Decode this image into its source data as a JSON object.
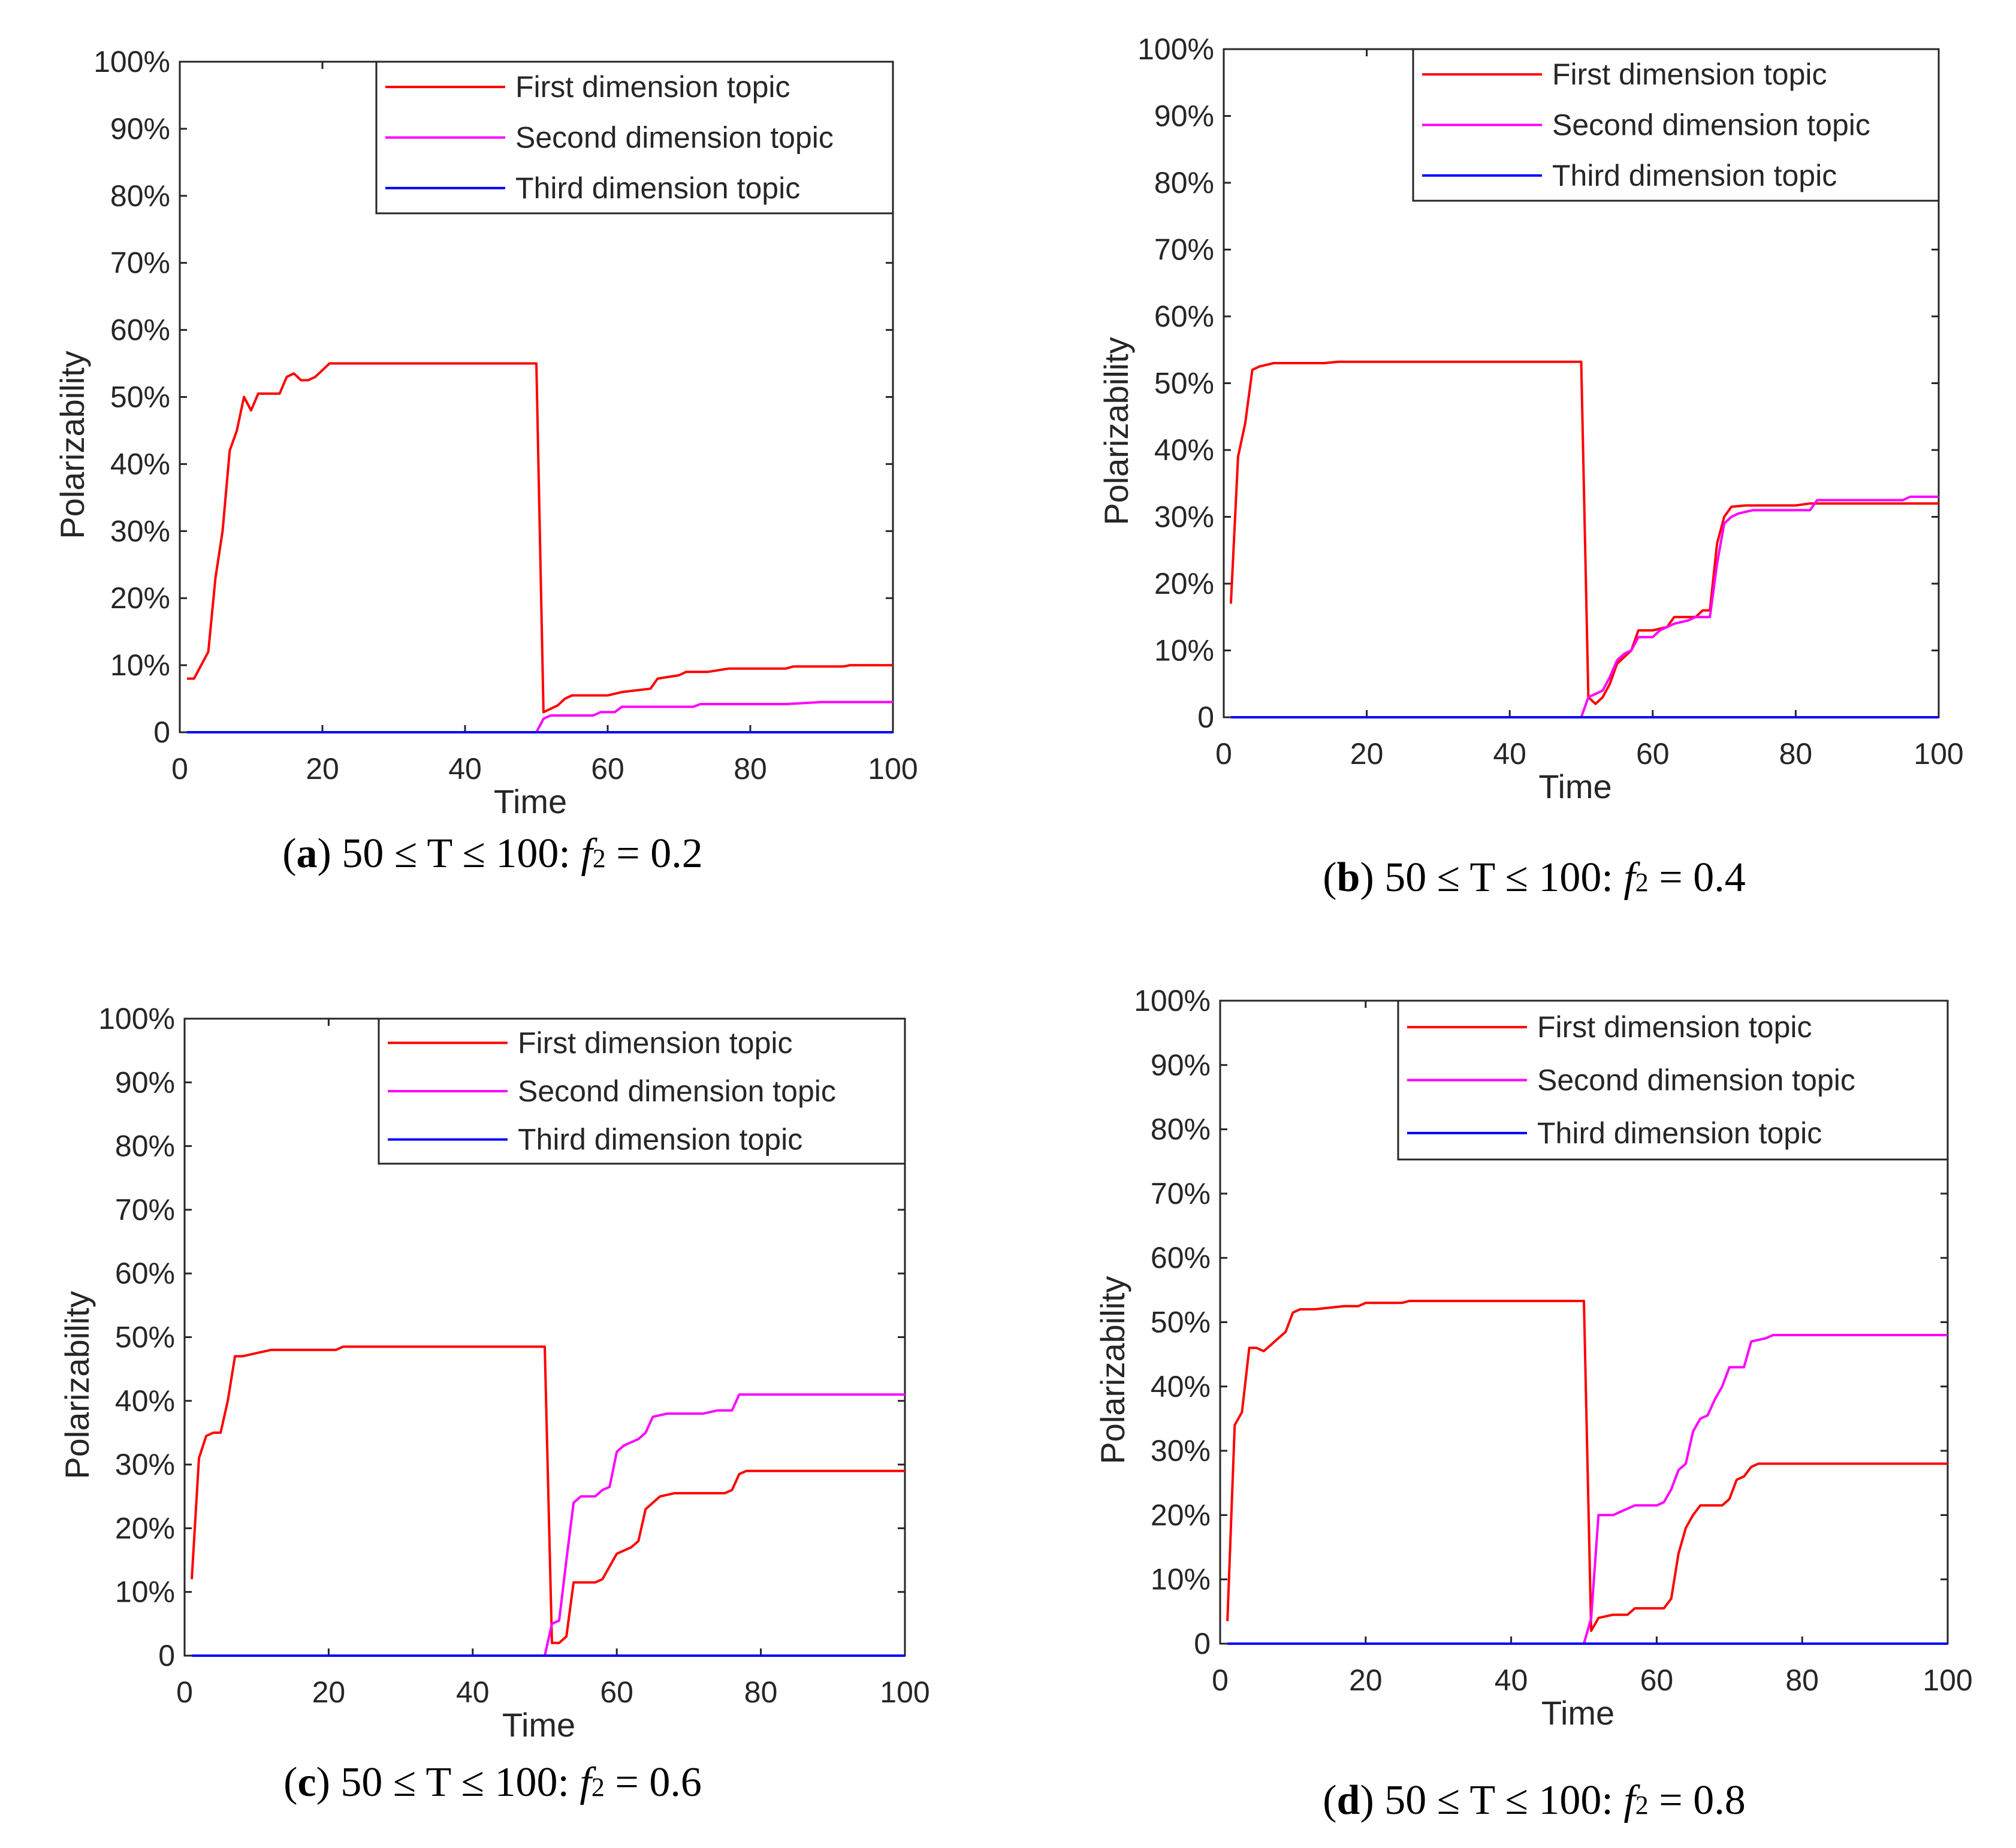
{
  "chart_data": [
    {
      "panel": "a",
      "type": "line",
      "caption": {
        "letter": "a",
        "range": "50 ≤ T ≤ 100:",
        "param": "f",
        "param_sub": "2",
        "value": "= 0.2"
      },
      "xlabel": "Time",
      "ylabel": "Polarizability",
      "xlim": [
        0,
        100
      ],
      "ylim": [
        0,
        100
      ],
      "x_ticks": [
        "0",
        "20",
        "40",
        "60",
        "80",
        "100"
      ],
      "y_ticks": [
        "0",
        "10%",
        "20%",
        "30%",
        "40%",
        "50%",
        "60%",
        "70%",
        "80%",
        "90%",
        "100%"
      ],
      "legend": {
        "location": "top-right"
      },
      "series": [
        {
          "name": "First dimension topic",
          "color": "#ff0000",
          "points": [
            [
              1,
              8
            ],
            [
              2,
              8
            ],
            [
              3,
              10
            ],
            [
              4,
              12
            ],
            [
              5,
              23
            ],
            [
              6,
              30
            ],
            [
              7,
              42
            ],
            [
              8,
              45
            ],
            [
              9,
              50
            ],
            [
              10,
              48
            ],
            [
              11,
              50.5
            ],
            [
              13,
              50.5
            ],
            [
              14,
              50.5
            ],
            [
              15,
              53
            ],
            [
              16,
              53.5
            ],
            [
              17,
              52.5
            ],
            [
              18,
              52.5
            ],
            [
              19,
              53
            ],
            [
              20,
              54
            ],
            [
              21,
              55
            ],
            [
              50,
              55
            ],
            [
              51,
              3
            ],
            [
              52,
              3.5
            ],
            [
              53,
              4
            ],
            [
              54,
              5
            ],
            [
              55,
              5.5
            ],
            [
              60,
              5.5
            ],
            [
              62,
              6
            ],
            [
              66,
              6.5
            ],
            [
              67,
              8
            ],
            [
              70,
              8.5
            ],
            [
              71,
              9
            ],
            [
              74,
              9
            ],
            [
              77,
              9.5
            ],
            [
              85,
              9.5
            ],
            [
              86,
              9.8
            ],
            [
              93,
              9.8
            ],
            [
              94,
              10
            ],
            [
              100,
              10
            ]
          ]
        },
        {
          "name": "Second dimension topic",
          "color": "#ff00ff",
          "points": [
            [
              1,
              0
            ],
            [
              50,
              0
            ],
            [
              51,
              2
            ],
            [
              52,
              2.5
            ],
            [
              58,
              2.5
            ],
            [
              59,
              3
            ],
            [
              61,
              3
            ],
            [
              62,
              3.8
            ],
            [
              72,
              3.8
            ],
            [
              73,
              4.2
            ],
            [
              85,
              4.2
            ],
            [
              90,
              4.5
            ],
            [
              100,
              4.5
            ]
          ]
        },
        {
          "name": "Third dimension topic",
          "color": "#0000ff",
          "points": [
            [
              1,
              0
            ],
            [
              100,
              0
            ]
          ]
        }
      ]
    },
    {
      "panel": "b",
      "type": "line",
      "caption": {
        "letter": "b",
        "range": "50 ≤ T ≤ 100:",
        "param": "f",
        "param_sub": "2",
        "value": "= 0.4"
      },
      "xlabel": "Time",
      "ylabel": "Polarizability",
      "xlim": [
        0,
        100
      ],
      "ylim": [
        0,
        100
      ],
      "x_ticks": [
        "0",
        "20",
        "40",
        "60",
        "80",
        "100"
      ],
      "y_ticks": [
        "0",
        "10%",
        "20%",
        "30%",
        "40%",
        "50%",
        "60%",
        "70%",
        "80%",
        "90%",
        "100%"
      ],
      "legend": {
        "location": "top-right"
      },
      "series": [
        {
          "name": "First dimension topic",
          "color": "#ff0000",
          "points": [
            [
              1,
              17
            ],
            [
              2,
              39
            ],
            [
              3,
              44
            ],
            [
              4,
              52
            ],
            [
              5,
              52.5
            ],
            [
              7,
              53
            ],
            [
              14,
              53
            ],
            [
              16,
              53.2
            ],
            [
              50,
              53.2
            ],
            [
              51,
              3
            ],
            [
              52,
              2
            ],
            [
              53,
              3
            ],
            [
              54,
              5
            ],
            [
              55,
              8
            ],
            [
              56,
              9
            ],
            [
              57,
              10
            ],
            [
              58,
              13
            ],
            [
              60,
              13
            ],
            [
              62,
              13.5
            ],
            [
              63,
              15
            ],
            [
              66,
              15
            ],
            [
              67,
              16
            ],
            [
              68,
              16
            ],
            [
              69,
              26
            ],
            [
              70,
              30
            ],
            [
              71,
              31.5
            ],
            [
              73,
              31.7
            ],
            [
              80,
              31.7
            ],
            [
              82,
              32
            ],
            [
              100,
              32
            ]
          ]
        },
        {
          "name": "Second dimension topic",
          "color": "#ff00ff",
          "points": [
            [
              1,
              0
            ],
            [
              50,
              0
            ],
            [
              51,
              3
            ],
            [
              52,
              3.5
            ],
            [
              53,
              4
            ],
            [
              54,
              6
            ],
            [
              55,
              8.5
            ],
            [
              56,
              9.5
            ],
            [
              57,
              10
            ],
            [
              58,
              12
            ],
            [
              60,
              12
            ],
            [
              61,
              13
            ],
            [
              63,
              14
            ],
            [
              65,
              14.5
            ],
            [
              66,
              15
            ],
            [
              68,
              15
            ],
            [
              69,
              23
            ],
            [
              70,
              29
            ],
            [
              71,
              30
            ],
            [
              72,
              30.5
            ],
            [
              74,
              31
            ],
            [
              82,
              31
            ],
            [
              83,
              32.5
            ],
            [
              95,
              32.5
            ],
            [
              96,
              33
            ],
            [
              100,
              33
            ]
          ]
        },
        {
          "name": "Third dimension topic",
          "color": "#0000ff",
          "points": [
            [
              1,
              0
            ],
            [
              100,
              0
            ]
          ]
        }
      ]
    },
    {
      "panel": "c",
      "type": "line",
      "caption": {
        "letter": "c",
        "range": "50 ≤ T ≤ 100:",
        "param": "f",
        "param_sub": "2",
        "value": "= 0.6"
      },
      "xlabel": "Time",
      "ylabel": "Polarizability",
      "xlim": [
        0,
        100
      ],
      "ylim": [
        0,
        100
      ],
      "x_ticks": [
        "0",
        "20",
        "40",
        "60",
        "80",
        "100"
      ],
      "y_ticks": [
        "0",
        "10%",
        "20%",
        "30%",
        "40%",
        "50%",
        "60%",
        "70%",
        "80%",
        "90%",
        "100%"
      ],
      "legend": {
        "location": "top-right"
      },
      "series": [
        {
          "name": "First dimension topic",
          "color": "#ff0000",
          "points": [
            [
              1,
              12
            ],
            [
              2,
              31
            ],
            [
              3,
              34.5
            ],
            [
              4,
              35
            ],
            [
              5,
              35
            ],
            [
              6,
              40
            ],
            [
              7,
              47
            ],
            [
              8,
              47
            ],
            [
              10,
              47.5
            ],
            [
              12,
              48
            ],
            [
              21,
              48
            ],
            [
              22,
              48.5
            ],
            [
              50,
              48.5
            ],
            [
              51,
              2
            ],
            [
              52,
              2
            ],
            [
              53,
              3
            ],
            [
              54,
              11.5
            ],
            [
              57,
              11.5
            ],
            [
              58,
              12
            ],
            [
              59,
              14
            ],
            [
              60,
              16
            ],
            [
              61,
              16.5
            ],
            [
              62,
              17
            ],
            [
              63,
              18
            ],
            [
              64,
              23
            ],
            [
              65,
              24
            ],
            [
              66,
              25
            ],
            [
              68,
              25.5
            ],
            [
              75,
              25.5
            ],
            [
              76,
              26
            ],
            [
              77,
              28.5
            ],
            [
              78,
              29
            ],
            [
              100,
              29
            ]
          ]
        },
        {
          "name": "Second dimension topic",
          "color": "#ff00ff",
          "points": [
            [
              1,
              0
            ],
            [
              50,
              0
            ],
            [
              51,
              5
            ],
            [
              52,
              5.5
            ],
            [
              53,
              15
            ],
            [
              54,
              24
            ],
            [
              55,
              25
            ],
            [
              57,
              25
            ],
            [
              58,
              26
            ],
            [
              59,
              26.5
            ],
            [
              60,
              32
            ],
            [
              61,
              33
            ],
            [
              62,
              33.5
            ],
            [
              63,
              34
            ],
            [
              64,
              35
            ],
            [
              65,
              37.5
            ],
            [
              67,
              38
            ],
            [
              72,
              38
            ],
            [
              74,
              38.5
            ],
            [
              76,
              38.5
            ],
            [
              77,
              41
            ],
            [
              100,
              41
            ]
          ]
        },
        {
          "name": "Third dimension topic",
          "color": "#0000ff",
          "points": [
            [
              1,
              0
            ],
            [
              100,
              0
            ]
          ]
        }
      ]
    },
    {
      "panel": "d",
      "type": "line",
      "caption": {
        "letter": "d",
        "range": "50 ≤ T ≤ 100:",
        "param": "f",
        "param_sub": "2",
        "value": "= 0.8"
      },
      "xlabel": "Time",
      "ylabel": "Polarizability",
      "xlim": [
        0,
        100
      ],
      "ylim": [
        0,
        100
      ],
      "x_ticks": [
        "0",
        "20",
        "40",
        "60",
        "80",
        "100"
      ],
      "y_ticks": [
        "0",
        "10%",
        "20%",
        "30%",
        "40%",
        "50%",
        "60%",
        "70%",
        "80%",
        "90%",
        "100%"
      ],
      "legend": {
        "location": "top-right"
      },
      "series": [
        {
          "name": "First dimension topic",
          "color": "#ff0000",
          "points": [
            [
              1,
              3.5
            ],
            [
              2,
              34
            ],
            [
              3,
              36
            ],
            [
              4,
              46
            ],
            [
              5,
              46
            ],
            [
              6,
              45.5
            ],
            [
              7,
              46.5
            ],
            [
              8,
              47.5
            ],
            [
              9,
              48.5
            ],
            [
              10,
              51.5
            ],
            [
              11,
              52
            ],
            [
              13,
              52
            ],
            [
              17,
              52.5
            ],
            [
              19,
              52.5
            ],
            [
              20,
              53
            ],
            [
              25,
              53
            ],
            [
              26,
              53.3
            ],
            [
              50,
              53.3
            ],
            [
              51,
              2
            ],
            [
              52,
              4
            ],
            [
              54,
              4.5
            ],
            [
              56,
              4.5
            ],
            [
              57,
              5.5
            ],
            [
              61,
              5.5
            ],
            [
              62,
              7
            ],
            [
              63,
              14
            ],
            [
              64,
              18
            ],
            [
              65,
              20
            ],
            [
              66,
              21.5
            ],
            [
              69,
              21.5
            ],
            [
              70,
              22.5
            ],
            [
              71,
              25.5
            ],
            [
              72,
              26
            ],
            [
              73,
              27.5
            ],
            [
              74,
              28
            ],
            [
              100,
              28
            ]
          ]
        },
        {
          "name": "Second dimension topic",
          "color": "#ff00ff",
          "points": [
            [
              1,
              0
            ],
            [
              50,
              0
            ],
            [
              51,
              4
            ],
            [
              52,
              20
            ],
            [
              54,
              20
            ],
            [
              55,
              20.5
            ],
            [
              56,
              21
            ],
            [
              57,
              21.5
            ],
            [
              60,
              21.5
            ],
            [
              61,
              22
            ],
            [
              62,
              24
            ],
            [
              63,
              27
            ],
            [
              64,
              28
            ],
            [
              65,
              33
            ],
            [
              66,
              35
            ],
            [
              67,
              35.5
            ],
            [
              68,
              38
            ],
            [
              69,
              40
            ],
            [
              70,
              43
            ],
            [
              72,
              43
            ],
            [
              73,
              47
            ],
            [
              75,
              47.5
            ],
            [
              76,
              48
            ],
            [
              100,
              48
            ]
          ]
        },
        {
          "name": "Third dimension topic",
          "color": "#0000ff",
          "points": [
            [
              1,
              0
            ],
            [
              100,
              0
            ]
          ]
        }
      ]
    }
  ]
}
